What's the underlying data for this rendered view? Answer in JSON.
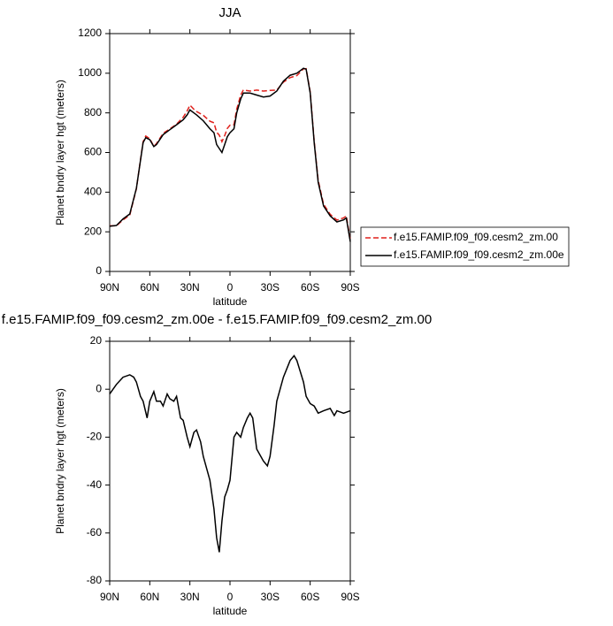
{
  "chart_data": [
    {
      "type": "line",
      "title": "JJA",
      "xlabel": "latitude",
      "ylabel": "Planet bndry layer hgt (meters)",
      "x": [
        90,
        85,
        80,
        75,
        70,
        67,
        65,
        63,
        60,
        57,
        55,
        50,
        45,
        40,
        35,
        32,
        30,
        27,
        25,
        20,
        15,
        12,
        10,
        8,
        6,
        4,
        2,
        0,
        -3,
        -5,
        -8,
        -10,
        -15,
        -20,
        -25,
        -30,
        -35,
        -40,
        -45,
        -50,
        -55,
        -57,
        -60,
        -63,
        -66,
        -70,
        -75,
        -80,
        -85,
        -87,
        -90
      ],
      "series": [
        {
          "name": "f.e15.FAMIP.f09_f09.cesm2_zm.00",
          "color": "#e0201b",
          "dash": true,
          "values": [
            230,
            230,
            260,
            284,
            417,
            563,
            655,
            683,
            670,
            631,
            645,
            697,
            719,
            743,
            778,
            810,
            839,
            818,
            807,
            788,
            758,
            750,
            702,
            688,
            655,
            685,
            722,
            738,
            740,
            818,
            890,
            916,
            910,
            915,
            910,
            913,
            915,
            955,
            978,
            988,
            1022,
            1023,
            906,
            657,
            460,
            339,
            288,
            259,
            270,
            280,
            159
          ]
        },
        {
          "name": "f.e15.FAMIP.f09_f09.cesm2_zm.00e",
          "color": "#000000",
          "dash": false,
          "values": [
            228,
            232,
            265,
            290,
            420,
            560,
            650,
            675,
            665,
            630,
            640,
            690,
            715,
            740,
            765,
            790,
            815,
            800,
            790,
            760,
            720,
            700,
            640,
            620,
            600,
            640,
            680,
            700,
            720,
            800,
            870,
            900,
            900,
            890,
            880,
            885,
            910,
            960,
            990,
            1000,
            1025,
            1020,
            900,
            650,
            450,
            330,
            280,
            250,
            260,
            270,
            150
          ]
        }
      ],
      "xlim": [
        90,
        -90
      ],
      "xticks": [
        {
          "value": 90,
          "label": "90N"
        },
        {
          "value": 60,
          "label": "60N"
        },
        {
          "value": 30,
          "label": "30N"
        },
        0,
        {
          "value": -30,
          "label": "30S"
        },
        {
          "value": -60,
          "label": "60S"
        },
        {
          "value": -90,
          "label": "90S"
        }
      ],
      "ylim": [
        0,
        1200
      ],
      "yticks": [
        0,
        200,
        400,
        600,
        800,
        1000,
        1200
      ],
      "legend": "right"
    },
    {
      "type": "line",
      "title": "f.e15.FAMIP.f09_f09.cesm2_zm.00e - f.e15.FAMIP.f09_f09.cesm2_zm.00",
      "xlabel": "latitude",
      "ylabel": "Planet bndry layer hgt (meters)",
      "x": [
        90,
        85,
        80,
        75,
        72,
        70,
        67,
        65,
        62,
        60,
        57,
        55,
        52,
        50,
        47,
        45,
        42,
        40,
        37,
        35,
        32,
        30,
        27,
        25,
        22,
        20,
        17,
        15,
        12,
        10,
        8,
        6,
        4,
        2,
        0,
        -3,
        -5,
        -8,
        -10,
        -13,
        -15,
        -17,
        -20,
        -25,
        -28,
        -30,
        -33,
        -35,
        -40,
        -45,
        -48,
        -50,
        -55,
        -57,
        -60,
        -63,
        -66,
        -70,
        -75,
        -78,
        -80,
        -85,
        -90
      ],
      "values": [
        -2,
        2,
        5,
        6,
        5,
        3,
        -3,
        -5,
        -12,
        -5,
        -1,
        -5,
        -5,
        -7,
        -2,
        -4,
        -5,
        -3,
        -12,
        -13,
        -20,
        -24,
        -18,
        -17,
        -22,
        -28,
        -34,
        -38,
        -50,
        -62,
        -68,
        -55,
        -45,
        -42,
        -38,
        -20,
        -18,
        -20,
        -16,
        -12,
        -10,
        -12,
        -25,
        -30,
        -32,
        -28,
        -15,
        -5,
        5,
        12,
        14,
        12,
        3,
        -3,
        -6,
        -7,
        -10,
        -9,
        -8,
        -11,
        -9,
        -10,
        -9
      ],
      "color": "#000000",
      "xlim": [
        90,
        -90
      ],
      "xticks": [
        {
          "value": 90,
          "label": "90N"
        },
        {
          "value": 60,
          "label": "60N"
        },
        {
          "value": 30,
          "label": "30N"
        },
        0,
        {
          "value": -30,
          "label": "30S"
        },
        {
          "value": -60,
          "label": "60S"
        },
        {
          "value": -90,
          "label": "90S"
        }
      ],
      "ylim": [
        -80,
        20
      ],
      "yticks": [
        -80,
        -60,
        -40,
        -20,
        0,
        20
      ]
    }
  ]
}
